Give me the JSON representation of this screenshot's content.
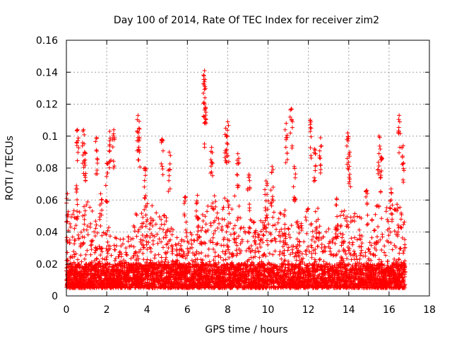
{
  "chart_data": {
    "type": "scatter",
    "title": "Day 100 of 2014, Rate Of TEC Index for receiver zim2",
    "xlabel": "GPS time / hours",
    "ylabel": "ROTI / TECUs",
    "xlim": [
      0,
      18
    ],
    "ylim": [
      0,
      0.16
    ],
    "x_ticks": [
      0,
      2,
      4,
      6,
      8,
      10,
      12,
      14,
      16,
      18
    ],
    "y_ticks": [
      0,
      0.02,
      0.04,
      0.06,
      0.08,
      0.1,
      0.12,
      0.14,
      0.16
    ],
    "x_tick_labels": [
      "0",
      "2",
      "4",
      "6",
      "8",
      "10",
      "12",
      "14",
      "16",
      "18"
    ],
    "y_tick_labels": [
      "0",
      "0.02",
      "0.04",
      "0.06",
      "0.08",
      "0.1",
      "0.12",
      "0.14",
      "0.16"
    ],
    "grid": true,
    "marker": "plus",
    "color": "#ff0000",
    "x_data_range": [
      0,
      16.8
    ],
    "baseline_band": [
      0.005,
      0.02
    ],
    "peaks": [
      {
        "x": 0.05,
        "y": 0.064
      },
      {
        "x": 0.5,
        "y": 0.069
      },
      {
        "x": 0.55,
        "y": 0.104
      },
      {
        "x": 0.85,
        "y": 0.104
      },
      {
        "x": 0.9,
        "y": 0.09
      },
      {
        "x": 1.5,
        "y": 0.099
      },
      {
        "x": 1.7,
        "y": 0.064
      },
      {
        "x": 2.0,
        "y": 0.083
      },
      {
        "x": 2.15,
        "y": 0.103
      },
      {
        "x": 2.35,
        "y": 0.104
      },
      {
        "x": 3.55,
        "y": 0.113
      },
      {
        "x": 3.6,
        "y": 0.105
      },
      {
        "x": 3.9,
        "y": 0.08
      },
      {
        "x": 4.75,
        "y": 0.098
      },
      {
        "x": 5.1,
        "y": 0.09
      },
      {
        "x": 5.9,
        "y": 0.062
      },
      {
        "x": 6.5,
        "y": 0.063
      },
      {
        "x": 6.85,
        "y": 0.141
      },
      {
        "x": 6.85,
        "y": 0.134
      },
      {
        "x": 6.9,
        "y": 0.118
      },
      {
        "x": 7.2,
        "y": 0.093
      },
      {
        "x": 7.9,
        "y": 0.105
      },
      {
        "x": 8.0,
        "y": 0.109
      },
      {
        "x": 8.5,
        "y": 0.089
      },
      {
        "x": 9.05,
        "y": 0.076
      },
      {
        "x": 9.9,
        "y": 0.072
      },
      {
        "x": 10.2,
        "y": 0.081
      },
      {
        "x": 10.9,
        "y": 0.108
      },
      {
        "x": 11.15,
        "y": 0.117
      },
      {
        "x": 11.3,
        "y": 0.081
      },
      {
        "x": 12.1,
        "y": 0.11
      },
      {
        "x": 12.3,
        "y": 0.092
      },
      {
        "x": 12.6,
        "y": 0.099
      },
      {
        "x": 13.4,
        "y": 0.061
      },
      {
        "x": 13.95,
        "y": 0.102
      },
      {
        "x": 14.05,
        "y": 0.09
      },
      {
        "x": 14.9,
        "y": 0.066
      },
      {
        "x": 15.5,
        "y": 0.1
      },
      {
        "x": 15.6,
        "y": 0.087
      },
      {
        "x": 16.1,
        "y": 0.067
      },
      {
        "x": 16.5,
        "y": 0.113
      },
      {
        "x": 16.7,
        "y": 0.094
      }
    ],
    "activity_envelope": [
      {
        "x": 0.0,
        "y": 0.047
      },
      {
        "x": 0.5,
        "y": 0.06
      },
      {
        "x": 1.0,
        "y": 0.06
      },
      {
        "x": 1.5,
        "y": 0.05
      },
      {
        "x": 2.0,
        "y": 0.045
      },
      {
        "x": 2.5,
        "y": 0.038
      },
      {
        "x": 3.0,
        "y": 0.035
      },
      {
        "x": 3.5,
        "y": 0.055
      },
      {
        "x": 4.0,
        "y": 0.06
      },
      {
        "x": 4.5,
        "y": 0.055
      },
      {
        "x": 5.0,
        "y": 0.05
      },
      {
        "x": 5.5,
        "y": 0.04
      },
      {
        "x": 6.0,
        "y": 0.035
      },
      {
        "x": 6.5,
        "y": 0.05
      },
      {
        "x": 7.0,
        "y": 0.06
      },
      {
        "x": 7.5,
        "y": 0.065
      },
      {
        "x": 8.0,
        "y": 0.07
      },
      {
        "x": 8.5,
        "y": 0.06
      },
      {
        "x": 9.0,
        "y": 0.05
      },
      {
        "x": 9.5,
        "y": 0.045
      },
      {
        "x": 10.0,
        "y": 0.06
      },
      {
        "x": 10.5,
        "y": 0.055
      },
      {
        "x": 11.0,
        "y": 0.055
      },
      {
        "x": 11.5,
        "y": 0.05
      },
      {
        "x": 12.0,
        "y": 0.055
      },
      {
        "x": 12.5,
        "y": 0.055
      },
      {
        "x": 13.0,
        "y": 0.045
      },
      {
        "x": 13.5,
        "y": 0.05
      },
      {
        "x": 14.0,
        "y": 0.06
      },
      {
        "x": 14.5,
        "y": 0.05
      },
      {
        "x": 15.0,
        "y": 0.045
      },
      {
        "x": 15.5,
        "y": 0.06
      },
      {
        "x": 16.0,
        "y": 0.055
      },
      {
        "x": 16.5,
        "y": 0.06
      },
      {
        "x": 16.8,
        "y": 0.045
      }
    ]
  }
}
